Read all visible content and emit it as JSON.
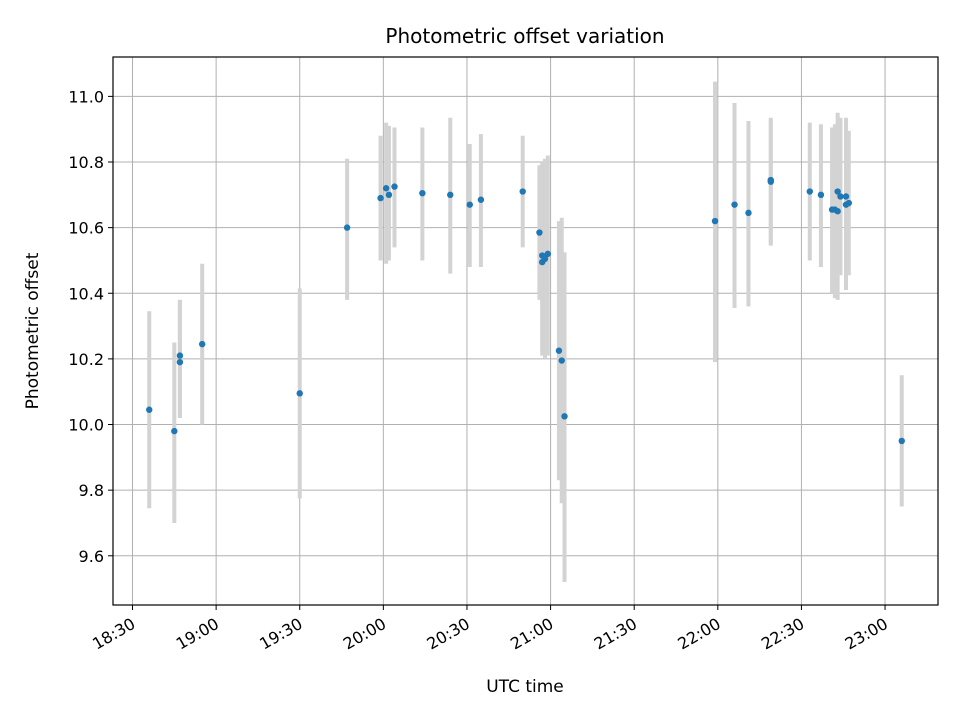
{
  "chart_data": {
    "type": "scatter",
    "title": "Photometric offset variation",
    "xlabel": "UTC time",
    "ylabel": "Photometric offset",
    "x_kind": "time-of-day",
    "xlim": [
      "18:23",
      "23:19"
    ],
    "ylim": [
      9.45,
      11.12
    ],
    "x_ticks": [
      "18:30",
      "19:00",
      "19:30",
      "20:00",
      "20:30",
      "21:00",
      "21:30",
      "22:00",
      "22:30",
      "23:00"
    ],
    "y_ticks": [
      9.6,
      9.8,
      10.0,
      10.2,
      10.4,
      10.6,
      10.8,
      11.0
    ],
    "y_tick_labels": [
      "9.6",
      "9.8",
      "10.0",
      "10.2",
      "10.4",
      "10.6",
      "10.8",
      "11.0"
    ],
    "grid": true,
    "point_color": "#1f77b4",
    "errorbar_color": "#d3d3d3",
    "points": [
      {
        "x": "18:36",
        "y": 10.045,
        "lo": 9.745,
        "hi": 10.345
      },
      {
        "x": "18:45",
        "y": 9.98,
        "lo": 9.7,
        "hi": 10.25
      },
      {
        "x": "18:47",
        "y": 10.19,
        "lo": 10.02,
        "hi": 10.38
      },
      {
        "x": "18:47",
        "y": 10.21,
        "lo": 10.02,
        "hi": 10.38
      },
      {
        "x": "18:55",
        "y": 10.245,
        "lo": 10.0,
        "hi": 10.49
      },
      {
        "x": "19:30",
        "y": 10.095,
        "lo": 9.775,
        "hi": 10.415
      },
      {
        "x": "19:47",
        "y": 10.6,
        "lo": 10.38,
        "hi": 10.81
      },
      {
        "x": "19:59",
        "y": 10.69,
        "lo": 10.5,
        "hi": 10.88
      },
      {
        "x": "20:01",
        "y": 10.72,
        "lo": 10.49,
        "hi": 10.92
      },
      {
        "x": "20:02",
        "y": 10.7,
        "lo": 10.5,
        "hi": 10.91
      },
      {
        "x": "20:04",
        "y": 10.725,
        "lo": 10.54,
        "hi": 10.905
      },
      {
        "x": "20:14",
        "y": 10.705,
        "lo": 10.5,
        "hi": 10.905
      },
      {
        "x": "20:24",
        "y": 10.7,
        "lo": 10.46,
        "hi": 10.935
      },
      {
        "x": "20:31",
        "y": 10.67,
        "lo": 10.48,
        "hi": 10.855
      },
      {
        "x": "20:35",
        "y": 10.685,
        "lo": 10.48,
        "hi": 10.885
      },
      {
        "x": "20:50",
        "y": 10.71,
        "lo": 10.54,
        "hi": 10.88
      },
      {
        "x": "20:56",
        "y": 10.585,
        "lo": 10.38,
        "hi": 10.79
      },
      {
        "x": "20:57",
        "y": 10.495,
        "lo": 10.21,
        "hi": 10.785
      },
      {
        "x": "20:57",
        "y": 10.515,
        "lo": 10.22,
        "hi": 10.8
      },
      {
        "x": "20:58",
        "y": 10.505,
        "lo": 10.2,
        "hi": 10.81
      },
      {
        "x": "20:59",
        "y": 10.52,
        "lo": 10.21,
        "hi": 10.82
      },
      {
        "x": "21:03",
        "y": 10.225,
        "lo": 9.83,
        "hi": 10.62
      },
      {
        "x": "21:04",
        "y": 10.195,
        "lo": 9.76,
        "hi": 10.63
      },
      {
        "x": "21:05",
        "y": 10.025,
        "lo": 9.52,
        "hi": 10.525
      },
      {
        "x": "21:59",
        "y": 10.62,
        "lo": 10.19,
        "hi": 11.045
      },
      {
        "x": "22:06",
        "y": 10.67,
        "lo": 10.355,
        "hi": 10.98
      },
      {
        "x": "22:11",
        "y": 10.645,
        "lo": 10.36,
        "hi": 10.925
      },
      {
        "x": "22:19",
        "y": 10.74,
        "lo": 10.545,
        "hi": 10.93
      },
      {
        "x": "22:19",
        "y": 10.745,
        "lo": 10.55,
        "hi": 10.935
      },
      {
        "x": "22:33",
        "y": 10.71,
        "lo": 10.5,
        "hi": 10.92
      },
      {
        "x": "22:37",
        "y": 10.7,
        "lo": 10.48,
        "hi": 10.915
      },
      {
        "x": "22:41",
        "y": 10.655,
        "lo": 10.4,
        "hi": 10.905
      },
      {
        "x": "22:42",
        "y": 10.655,
        "lo": 10.385,
        "hi": 10.915
      },
      {
        "x": "22:43",
        "y": 10.65,
        "lo": 10.38,
        "hi": 10.92
      },
      {
        "x": "22:43",
        "y": 10.71,
        "lo": 10.47,
        "hi": 10.95
      },
      {
        "x": "22:44",
        "y": 10.695,
        "lo": 10.455,
        "hi": 10.935
      },
      {
        "x": "22:46",
        "y": 10.67,
        "lo": 10.41,
        "hi": 10.93
      },
      {
        "x": "22:46",
        "y": 10.695,
        "lo": 10.455,
        "hi": 10.935
      },
      {
        "x": "22:47",
        "y": 10.675,
        "lo": 10.455,
        "hi": 10.895
      },
      {
        "x": "23:06",
        "y": 9.95,
        "lo": 9.75,
        "hi": 10.15
      }
    ]
  }
}
